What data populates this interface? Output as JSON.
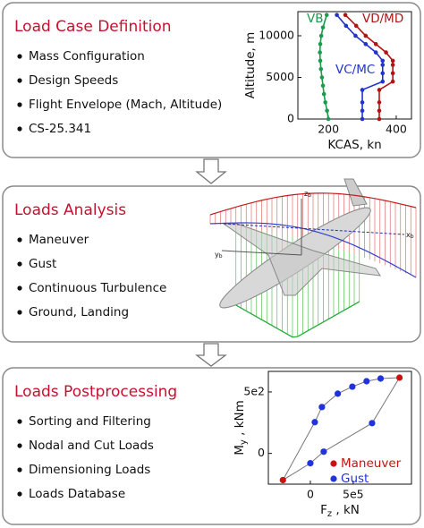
{
  "sections": [
    {
      "title": "Load Case Definition",
      "items": [
        "Mass Configuration",
        "Design Speeds",
        "Flight Envelope (Mach, Altitude)",
        "CS-25.341"
      ],
      "chart": {
        "type": "line",
        "x_label": "KCAS, kn",
        "y_label": "Altitude, m",
        "xlim": [
          110,
          445
        ],
        "xticks": [
          200,
          400
        ],
        "ylim": [
          0,
          12900
        ],
        "yticks": [
          0,
          5000,
          10000
        ],
        "series": [
          {
            "name": "VB",
            "color": "#1e9a4c",
            "x": [
              200,
              196,
              191,
              187,
              184,
              181,
              178,
              176,
              175,
              176,
              179,
              184,
              195
            ],
            "values": [
              0,
              1000,
              2000,
              3000,
              4000,
              5000,
              6000,
              7000,
              8000,
              9000,
              10000,
              11000,
              12500
            ]
          },
          {
            "name": "VC/MC",
            "color": "#2233cc",
            "x": [
              300,
              300,
              300,
              300,
              360,
              360,
              360,
              360,
              340,
              310,
              280,
              252,
              225
            ],
            "values": [
              0,
              1000,
              2000,
              3500,
              4500,
              5500,
              6500,
              7000,
              8000,
              9000,
              10000,
              11200,
              12500
            ]
          },
          {
            "name": "VD/MD",
            "color": "#b01515",
            "x": [
              350,
              350,
              350,
              350,
              390,
              390,
              390,
              390,
              370,
              340,
              310,
              282,
              250
            ],
            "values": [
              0,
              1000,
              2000,
              3500,
              4500,
              5500,
              6500,
              7000,
              8000,
              9000,
              10000,
              11200,
              12500
            ]
          }
        ]
      }
    },
    {
      "title": "Loads Analysis",
      "items": [
        "Maneuver",
        "Gust",
        "Continuous Turbulence",
        "Ground, Landing"
      ],
      "axes": [
        {
          "symbol": "z",
          "sub": "b"
        },
        {
          "symbol": "x",
          "sub": "b"
        },
        {
          "symbol": "y",
          "sub": "b"
        }
      ]
    },
    {
      "title": "Loads Postprocessing",
      "items": [
        "Sorting and Filtering",
        "Nodal and Cut Loads",
        "Dimensioning Loads",
        "Loads Database"
      ],
      "chart": {
        "type": "scatter",
        "x_label": {
          "symbol": "F",
          "sub": "z",
          "rest": " , kN"
        },
        "y_label": {
          "symbol": "M",
          "sub": "y",
          "rest": " , kNm"
        },
        "xlim": [
          -490000,
          1180000
        ],
        "xticks": [
          0,
          {
            "value": 500000,
            "label": "5e5"
          }
        ],
        "ylim": [
          -250,
          667
        ],
        "yticks": [
          0,
          {
            "value": 500,
            "label": "5e2"
          }
        ],
        "series": [
          {
            "name": "Maneuver",
            "color": "#cc1111",
            "x": [
              -320000,
              1040000
            ],
            "values": [
              -217,
              616
            ]
          },
          {
            "name": "Gust",
            "color": "#2233dd",
            "x": [
              0,
              156000,
              720000,
              52000,
              135000,
              320000,
              490000,
              656000,
              820000
            ],
            "values": [
              -80,
              14,
              246,
              254,
              377,
              486,
              543,
              587,
              609
            ]
          }
        ]
      }
    }
  ]
}
